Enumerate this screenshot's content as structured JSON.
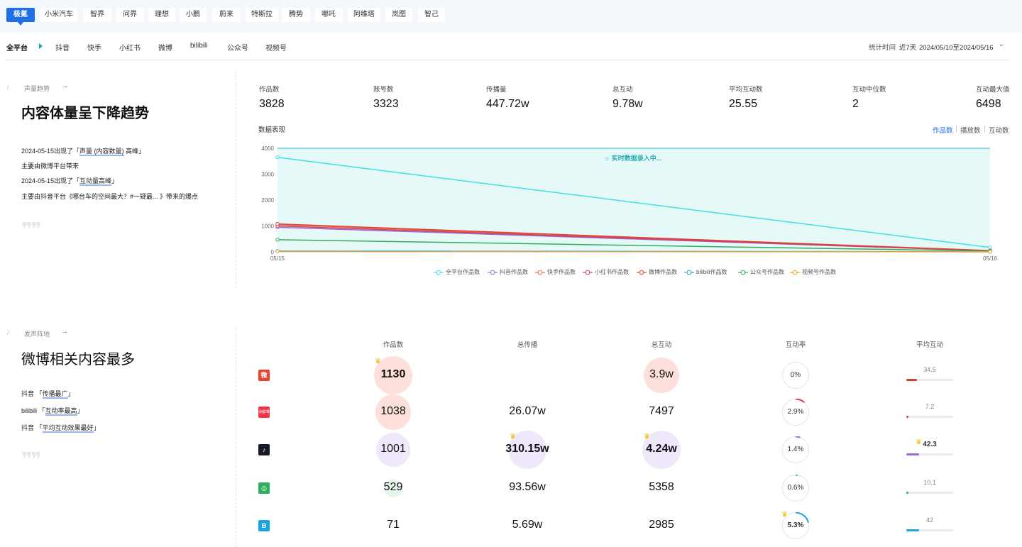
{
  "brand_tabs": [
    "极氪",
    "小米汽车",
    "智界",
    "问界",
    "理想",
    "小鹏",
    "蔚来",
    "特斯拉",
    "腾势",
    "哪吒",
    "阿维塔",
    "岚图",
    "智己"
  ],
  "platform_tabs": [
    "全平台",
    "抖音",
    "快手",
    "小红书",
    "微博",
    "bilibili",
    "公众号",
    "视频号"
  ],
  "stat_time": {
    "label": "统计时间",
    "range": "近7天",
    "dates": "2024/05/10至2024/05/16"
  },
  "section1": {
    "label": "声量趋势",
    "title": "内容体量呈下降趋势",
    "notes": [
      {
        "pre": "2024-05-15出现了「",
        "hl": "声量 (内容数量)",
        "post": " 高峰」"
      },
      {
        "pre": "主要由微博平台带来",
        "hl": "",
        "post": ""
      },
      {
        "pre": "2024-05-15出现了「",
        "hl": "互动量高峰",
        "post": "」"
      },
      {
        "pre": "主要由抖音平台《哪台车的空间最大？#一疑最... 》带来的爆点",
        "hl": "",
        "post": ""
      }
    ]
  },
  "metrics": [
    {
      "label": "作品数",
      "value": "3828"
    },
    {
      "label": "账号数",
      "value": "3323"
    },
    {
      "label": "传播量",
      "value": "447.72w"
    },
    {
      "label": "总互动",
      "value": "9.78w"
    },
    {
      "label": "平均互动数",
      "value": "25.55"
    },
    {
      "label": "互动中位数",
      "value": "2"
    },
    {
      "label": "互动最大值",
      "value": "6498"
    }
  ],
  "chart_header": {
    "title": "数据表现",
    "toggles": [
      "作品数",
      "播放数",
      "互动数"
    ],
    "live": "实时数据录入中..."
  },
  "chart_data": {
    "type": "line",
    "x": [
      "05/15",
      "05/16"
    ],
    "ylim": [
      0,
      4000
    ],
    "yticks": [
      "4000",
      "3000",
      "2000",
      "1000",
      "0"
    ],
    "series": [
      {
        "name": "全平台作品数",
        "color": "#3fe0e6",
        "values": [
          3650,
          170
        ]
      },
      {
        "name": "抖音作品数",
        "color": "#9b6ad8",
        "values": [
          950,
          40
        ]
      },
      {
        "name": "快手作品数",
        "color": "#e8743b",
        "values": [
          1050,
          30
        ]
      },
      {
        "name": "小红书作品数",
        "color": "#d04060",
        "values": [
          1000,
          40
        ]
      },
      {
        "name": "微博作品数",
        "color": "#e0403a",
        "values": [
          1080,
          50
        ]
      },
      {
        "name": "bilibili作品数",
        "color": "#2aa7c8",
        "values": [
          30,
          5
        ]
      },
      {
        "name": "公众号作品数",
        "color": "#2fae5e",
        "values": [
          470,
          30
        ]
      },
      {
        "name": "视频号作品数",
        "color": "#e0a040",
        "values": [
          20,
          5
        ]
      }
    ]
  },
  "section2": {
    "label": "发声阵地",
    "title": "微博相关内容最多",
    "notes": [
      {
        "pre": "抖音 「",
        "hl": "传播最广",
        "post": "」"
      },
      {
        "pre": "bilibili 「",
        "hl": "互动率最高",
        "post": "」"
      },
      {
        "pre": "抖音 「",
        "hl": "平均互动效果最好",
        "post": "」"
      }
    ]
  },
  "table": {
    "columns": [
      "作品数",
      "总传播",
      "总互动",
      "互动率",
      "平均互动"
    ],
    "rows": [
      {
        "platform": "weibo",
        "icon": "weibo-icon",
        "icon_text": "微",
        "icon_color": "#e8432e",
        "works": "1130",
        "spread": "",
        "interact": "3.9w",
        "rate": "0%",
        "rate_pct": 0,
        "avg": "34.5",
        "avg_frac": 0.22,
        "avg_color": "#d8402f"
      },
      {
        "platform": "xiaohongshu",
        "icon": "xiaohongshu-icon",
        "icon_text": "小红书",
        "icon_color": "#f0334a",
        "works": "1038",
        "spread": "26.07w",
        "interact": "7497",
        "rate": "2.9%",
        "rate_pct": 2.9,
        "avg": "7.2",
        "avg_frac": 0.04,
        "avg_color": "#e03a4e"
      },
      {
        "platform": "douyin",
        "icon": "douyin-icon",
        "icon_text": "♪",
        "icon_color": "#161823",
        "works": "1001",
        "spread": "310.15w",
        "interact": "4.24w",
        "rate": "1.4%",
        "rate_pct": 1.4,
        "avg": "42.3",
        "avg_frac": 0.27,
        "avg_color": "#9b6ad8"
      },
      {
        "platform": "wechat",
        "icon": "wechat-channel-icon",
        "icon_text": "◎",
        "icon_color": "#2fae5e",
        "works": "529",
        "spread": "93.56w",
        "interact": "5358",
        "rate": "0.6%",
        "rate_pct": 0.6,
        "avg": "10.1",
        "avg_frac": 0.05,
        "avg_color": "#2fae5e"
      },
      {
        "platform": "bilibili",
        "icon": "bilibili-icon",
        "icon_text": "B",
        "icon_color": "#1ba5dc",
        "works": "71",
        "spread": "5.69w",
        "interact": "2985",
        "rate": "5.3%",
        "rate_pct": 5.3,
        "avg": "42",
        "avg_frac": 0.27,
        "avg_color": "#1ba5dc"
      }
    ]
  },
  "colors": {
    "accent": "#1e6fe8",
    "pink_bubble": "#fde3e3",
    "purple_bubble": "#efe8fb",
    "green_bubble": "#e6f6ea"
  }
}
